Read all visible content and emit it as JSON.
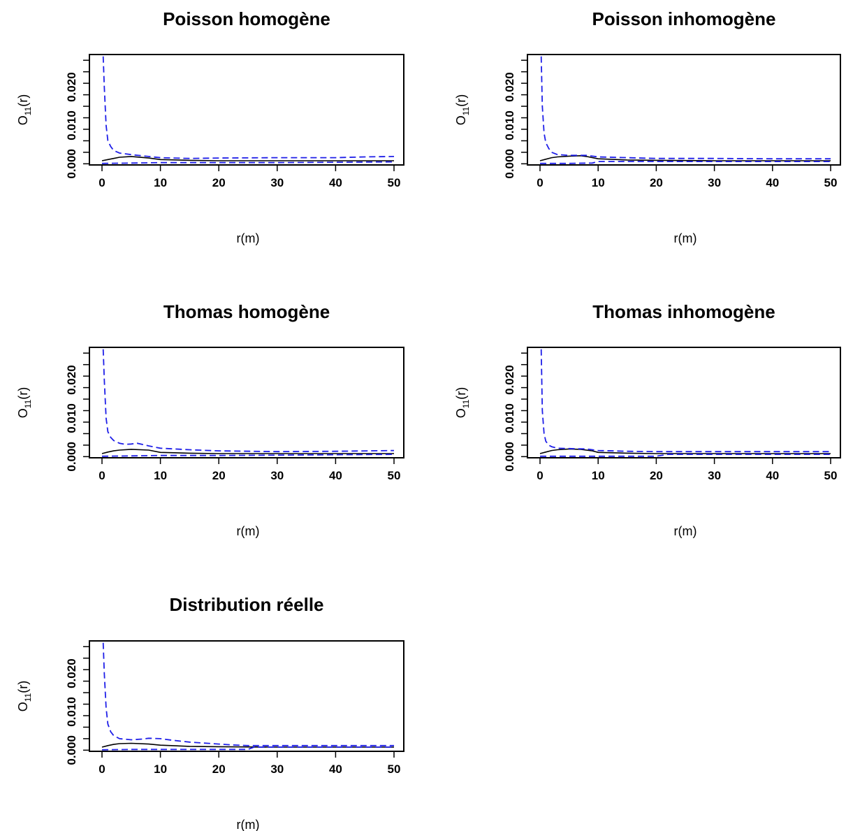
{
  "chart_data": [
    {
      "type": "line",
      "title": "Poisson homogène",
      "xlabel": "r(m)",
      "ylabel_main": "O",
      "ylabel_sub": "11",
      "ylabel_tail": "(r)",
      "xlim": [
        0,
        50
      ],
      "ylim": [
        -0.0003,
        0.0285
      ],
      "x_ticks": [
        0,
        10,
        20,
        30,
        40,
        50
      ],
      "y_ticks": [
        0,
        0.003,
        0.006,
        0.009,
        0.012,
        0.015,
        0.018,
        0.021,
        0.024,
        0.027
      ],
      "y_tick_labels": [
        {
          "value": 0,
          "label": "0.000"
        },
        {
          "value": 0.01,
          "label": "0.010"
        },
        {
          "value": 0.02,
          "label": "0.020"
        }
      ],
      "series": [
        {
          "style": "observed",
          "x": [
            0,
            1,
            2,
            3,
            5,
            8,
            10,
            15,
            20,
            30,
            40,
            50
          ],
          "y": [
            0.0008,
            0.0011,
            0.0014,
            0.0017,
            0.0019,
            0.0015,
            0.0011,
            0.0009,
            0.0008,
            0.0008,
            0.0008,
            0.0008
          ]
        },
        {
          "style": "envelope-upper",
          "x": [
            0.2,
            0.4,
            0.7,
            1,
            1.5,
            2,
            3,
            5,
            8,
            10,
            15,
            20,
            30,
            40,
            45,
            50
          ],
          "y": [
            0.028,
            0.02,
            0.01,
            0.006,
            0.0045,
            0.0035,
            0.0028,
            0.0024,
            0.0019,
            0.0016,
            0.0014,
            0.0015,
            0.0016,
            0.0016,
            0.0018,
            0.0019
          ]
        },
        {
          "style": "envelope-lower",
          "x": [
            0,
            5,
            10,
            20,
            30,
            40,
            50
          ],
          "y": [
            0.0001,
            0.0002,
            0.0003,
            0.0003,
            0.0003,
            0.0004,
            0.0005
          ]
        }
      ]
    },
    {
      "type": "line",
      "title": "Poisson inhomogène",
      "xlabel": "r(m)",
      "ylabel_main": "O",
      "ylabel_sub": "11",
      "ylabel_tail": "(r)",
      "xlim": [
        0,
        50
      ],
      "ylim": [
        -0.0003,
        0.0285
      ],
      "x_ticks": [
        0,
        10,
        20,
        30,
        40,
        50
      ],
      "y_ticks": [
        0,
        0.003,
        0.006,
        0.009,
        0.012,
        0.015,
        0.018,
        0.021,
        0.024,
        0.027
      ],
      "y_tick_labels": [
        {
          "value": 0,
          "label": "0.000"
        },
        {
          "value": 0.01,
          "label": "0.010"
        },
        {
          "value": 0.02,
          "label": "0.020"
        }
      ],
      "series": [
        {
          "style": "observed",
          "x": [
            0,
            1,
            2,
            3,
            5,
            7,
            8,
            10,
            15,
            20,
            30,
            40,
            50
          ],
          "y": [
            0.0008,
            0.0012,
            0.0016,
            0.0018,
            0.002,
            0.0021,
            0.0019,
            0.0013,
            0.001,
            0.0009,
            0.0008,
            0.0008,
            0.0008
          ]
        },
        {
          "style": "envelope-upper",
          "x": [
            0.2,
            0.4,
            0.7,
            1,
            1.5,
            2,
            3,
            5,
            8,
            10,
            15,
            20,
            30,
            40,
            50
          ],
          "y": [
            0.028,
            0.015,
            0.008,
            0.0055,
            0.004,
            0.003,
            0.0024,
            0.0022,
            0.0022,
            0.0018,
            0.0016,
            0.0014,
            0.0014,
            0.0013,
            0.0013
          ]
        },
        {
          "style": "envelope-lower",
          "x": [
            0,
            5,
            9,
            10,
            20,
            30,
            40,
            50
          ],
          "y": [
            0.0001,
            0.0001,
            0.0002,
            0.0006,
            0.0006,
            0.0006,
            0.0006,
            0.0006
          ]
        }
      ]
    },
    {
      "type": "line",
      "title": "Thomas homogène",
      "xlabel": "r(m)",
      "ylabel_main": "O",
      "ylabel_sub": "11",
      "ylabel_tail": "(r)",
      "xlim": [
        0,
        50
      ],
      "ylim": [
        -0.0003,
        0.0285
      ],
      "x_ticks": [
        0,
        10,
        20,
        30,
        40,
        50
      ],
      "y_ticks": [
        0,
        0.003,
        0.006,
        0.009,
        0.012,
        0.015,
        0.018,
        0.021,
        0.024,
        0.027
      ],
      "y_tick_labels": [
        {
          "value": 0,
          "label": "0.000"
        },
        {
          "value": 0.01,
          "label": "0.010"
        },
        {
          "value": 0.02,
          "label": "0.020"
        }
      ],
      "series": [
        {
          "style": "observed",
          "x": [
            0,
            1,
            2,
            3,
            5,
            8,
            10,
            15,
            20,
            30,
            40,
            50
          ],
          "y": [
            0.0008,
            0.0012,
            0.0015,
            0.0017,
            0.0019,
            0.0017,
            0.0011,
            0.0009,
            0.0008,
            0.0008,
            0.0008,
            0.0008
          ]
        },
        {
          "style": "envelope-upper",
          "x": [
            0.2,
            0.4,
            0.7,
            1,
            1.5,
            2,
            3,
            4,
            5,
            6,
            8,
            10,
            15,
            20,
            30,
            40,
            50
          ],
          "y": [
            0.028,
            0.02,
            0.01,
            0.0065,
            0.005,
            0.0042,
            0.0035,
            0.0032,
            0.0033,
            0.0035,
            0.0028,
            0.0022,
            0.0018,
            0.0015,
            0.0013,
            0.0014,
            0.0016
          ]
        },
        {
          "style": "envelope-lower",
          "x": [
            0,
            5,
            10,
            20,
            30,
            40,
            50
          ],
          "y": [
            0.0001,
            0.0002,
            0.0003,
            0.0003,
            0.0004,
            0.0005,
            0.0006
          ]
        }
      ]
    },
    {
      "type": "line",
      "title": "Thomas inhomogène",
      "xlabel": "r(m)",
      "ylabel_main": "O",
      "ylabel_sub": "11",
      "ylabel_tail": "(r)",
      "xlim": [
        0,
        50
      ],
      "ylim": [
        -0.0003,
        0.0285
      ],
      "x_ticks": [
        0,
        10,
        20,
        30,
        40,
        50
      ],
      "y_ticks": [
        0,
        0.003,
        0.006,
        0.009,
        0.012,
        0.015,
        0.018,
        0.021,
        0.024,
        0.027
      ],
      "y_tick_labels": [
        {
          "value": 0,
          "label": "0.000"
        },
        {
          "value": 0.01,
          "label": "0.010"
        },
        {
          "value": 0.02,
          "label": "0.020"
        }
      ],
      "series": [
        {
          "style": "observed",
          "x": [
            0,
            1,
            2,
            3,
            5,
            7,
            9,
            10,
            15,
            20,
            30,
            40,
            50
          ],
          "y": [
            0.0008,
            0.0012,
            0.0016,
            0.0018,
            0.002,
            0.0019,
            0.0015,
            0.0011,
            0.0009,
            0.0008,
            0.0008,
            0.0008,
            0.0008
          ]
        },
        {
          "style": "envelope-upper",
          "x": [
            0.2,
            0.4,
            0.7,
            1,
            1.5,
            2,
            3,
            5,
            8,
            10,
            15,
            20,
            30,
            40,
            50
          ],
          "y": [
            0.028,
            0.012,
            0.006,
            0.004,
            0.003,
            0.0026,
            0.0022,
            0.0021,
            0.002,
            0.0016,
            0.0014,
            0.0013,
            0.0013,
            0.0013,
            0.0013
          ]
        },
        {
          "style": "envelope-lower",
          "x": [
            0,
            5,
            10,
            20,
            22,
            30,
            40,
            50
          ],
          "y": [
            0.0001,
            0.0001,
            0.0001,
            0.0001,
            0.0006,
            0.0006,
            0.0006,
            0.0006
          ]
        }
      ]
    },
    {
      "type": "line",
      "title": "Distribution réelle",
      "xlabel": "r(m)",
      "ylabel_main": "O",
      "ylabel_sub": "11",
      "ylabel_tail": "(r)",
      "xlim": [
        0,
        50
      ],
      "ylim": [
        -0.0003,
        0.0285
      ],
      "x_ticks": [
        0,
        10,
        20,
        30,
        40,
        50
      ],
      "y_ticks": [
        0,
        0.003,
        0.006,
        0.009,
        0.012,
        0.015,
        0.018,
        0.021,
        0.024,
        0.027
      ],
      "y_tick_labels": [
        {
          "value": 0,
          "label": "0.000"
        },
        {
          "value": 0.01,
          "label": "0.010"
        },
        {
          "value": 0.02,
          "label": "0.020"
        }
      ],
      "series": [
        {
          "style": "observed",
          "x": [
            0,
            1,
            2,
            3,
            5,
            8,
            10,
            15,
            20,
            30,
            40,
            50
          ],
          "y": [
            0.0008,
            0.0012,
            0.0015,
            0.0017,
            0.0018,
            0.0016,
            0.0013,
            0.001,
            0.0009,
            0.0008,
            0.0008,
            0.0008
          ]
        },
        {
          "style": "envelope-upper",
          "x": [
            0.2,
            0.4,
            0.7,
            1,
            1.5,
            2,
            3,
            5,
            7,
            8,
            10,
            12,
            15,
            20,
            22,
            25,
            30,
            40,
            50
          ],
          "y": [
            0.028,
            0.02,
            0.011,
            0.0068,
            0.0048,
            0.0038,
            0.003,
            0.0027,
            0.0029,
            0.0031,
            0.003,
            0.0026,
            0.0021,
            0.0016,
            0.0014,
            0.0012,
            0.0012,
            0.0012,
            0.0012
          ]
        },
        {
          "style": "envelope-lower",
          "x": [
            0,
            5,
            10,
            20,
            25,
            26,
            30,
            40,
            50
          ],
          "y": [
            0.0001,
            0.0002,
            0.0002,
            0.0002,
            0.0002,
            0.0008,
            0.0008,
            0.0008,
            0.0008
          ]
        }
      ]
    }
  ]
}
